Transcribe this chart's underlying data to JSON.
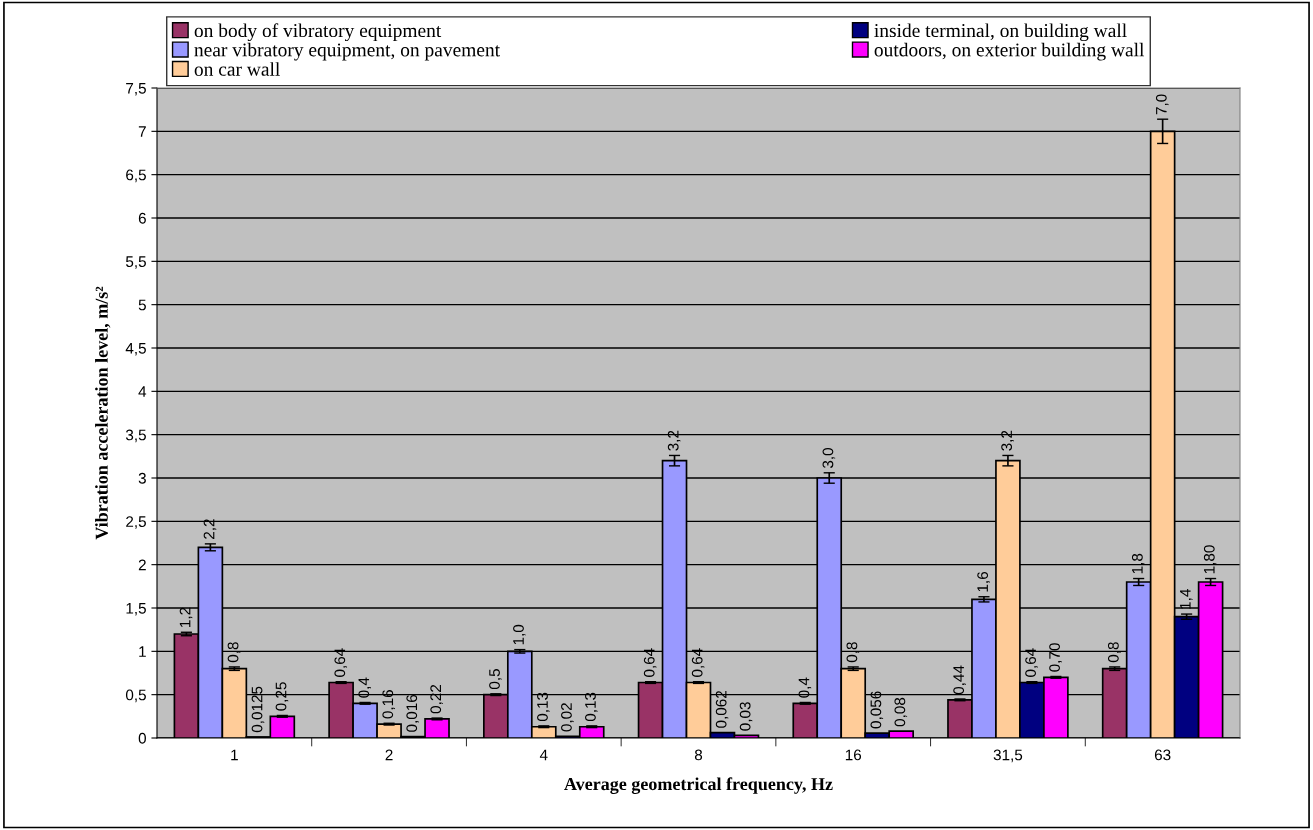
{
  "chart_data": {
    "type": "bar",
    "xlabel": "Average geometrical frequency, Hz",
    "ylabel": "Vibration acceleration level, m/s²",
    "categories": [
      "1",
      "2",
      "4",
      "8",
      "16",
      "31,5",
      "63"
    ],
    "ylim": [
      0,
      7.5
    ],
    "yticks": [
      0,
      {
        "value": 0.5,
        "label": "0,5"
      },
      1,
      {
        "value": 1.5,
        "label": "1,5"
      },
      2,
      {
        "value": 2.5,
        "label": "2,5"
      },
      3,
      {
        "value": 3.5,
        "label": "3,5"
      },
      4,
      {
        "value": 4.5,
        "label": "4,5"
      },
      5,
      {
        "value": 5.5,
        "label": "5,5"
      },
      6,
      {
        "value": 6.5,
        "label": "6,5"
      },
      7,
      {
        "value": 7.5,
        "label": "7,5"
      }
    ],
    "grid": "y",
    "legend": "top",
    "series": [
      {
        "name": "on body of vibratory equipment",
        "color": "#993366",
        "values": [
          1.2,
          0.64,
          0.5,
          0.64,
          0.4,
          0.44,
          0.8
        ],
        "errors": [
          0.02,
          0.01,
          0.01,
          0.01,
          0.01,
          0.01,
          0.02
        ],
        "value_labels": [
          "1,2",
          "0,64",
          "0,5",
          "0,64",
          "0,4",
          "0,44",
          "0,8"
        ]
      },
      {
        "name": "near vibratory equipment, on pavement",
        "color": "#9999ff",
        "values": [
          2.2,
          0.4,
          1.0,
          3.2,
          3.0,
          1.6,
          1.8
        ],
        "errors": [
          0.04,
          0.01,
          0.02,
          0.06,
          0.06,
          0.03,
          0.04
        ],
        "value_labels": [
          "2,2",
          "0,4",
          "1,0",
          "3,2",
          "3,0",
          "1,6",
          "1,8"
        ]
      },
      {
        "name": "on car wall",
        "color": "#ffcc99",
        "values": [
          0.8,
          0.16,
          0.13,
          0.64,
          0.8,
          3.2,
          7.0
        ],
        "errors": [
          0.02,
          0.01,
          0.01,
          0.01,
          0.02,
          0.06,
          0.14
        ],
        "value_labels": [
          "0,8",
          "0,16",
          "0,13",
          "0,64",
          "0,8",
          "3,2",
          "7,0"
        ]
      },
      {
        "name": "inside terminal, on building wall",
        "color": "#000080",
        "values": [
          0.0125,
          0.016,
          0.02,
          0.062,
          0.056,
          0.64,
          1.4
        ],
        "errors": [
          null,
          null,
          null,
          null,
          null,
          0.01,
          0.03
        ],
        "value_labels": [
          "0,0125",
          "0,016",
          "0,02",
          "0,062",
          "0,056",
          "0,64",
          "1,4"
        ]
      },
      {
        "name": "outdoors, on exterior building wall",
        "color": "#ff00ff",
        "values": [
          0.25,
          0.22,
          0.13,
          0.03,
          0.08,
          0.7,
          1.8
        ],
        "errors": [
          0.01,
          0.01,
          0.01,
          null,
          null,
          0.01,
          0.04
        ],
        "value_labels": [
          "0,25",
          "0,22",
          "0,13",
          "0,03",
          "0,08",
          "0,70",
          "1,80"
        ]
      }
    ]
  }
}
